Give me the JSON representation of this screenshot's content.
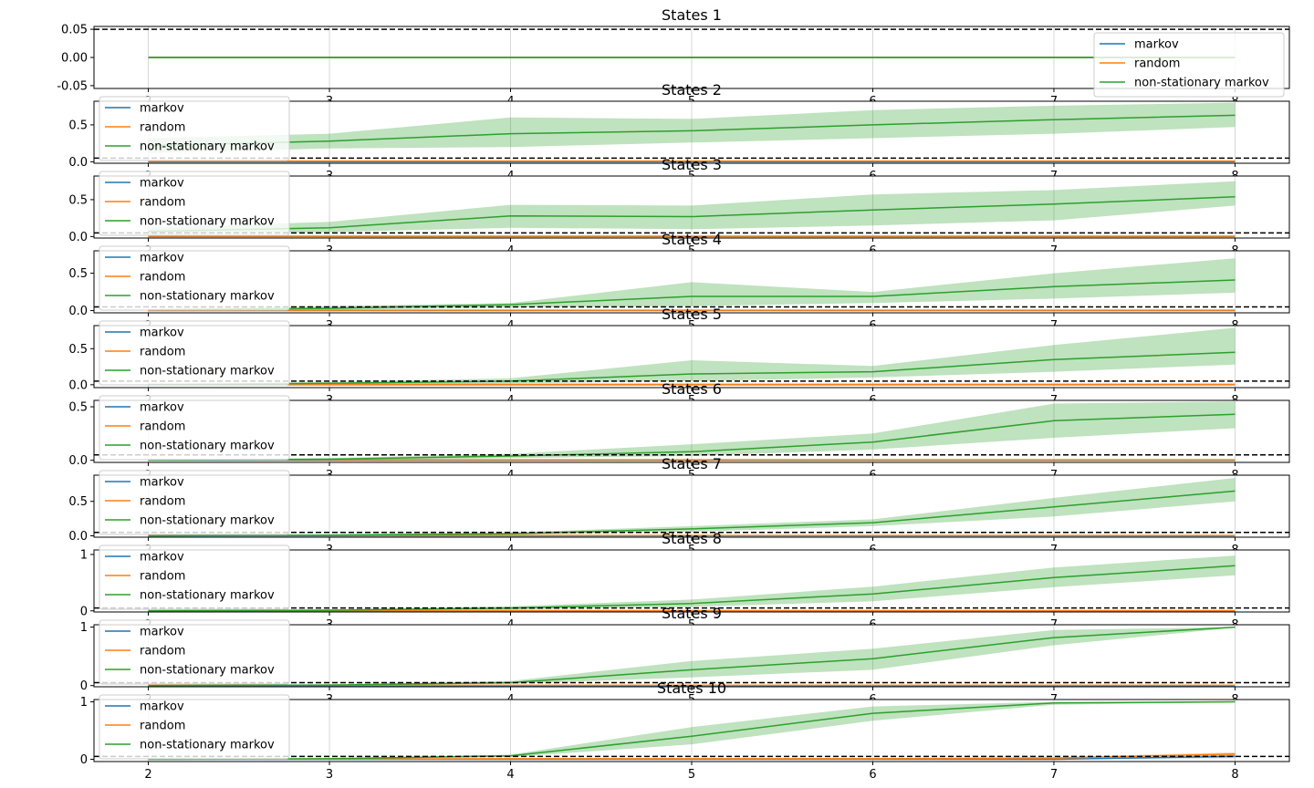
{
  "figure": {
    "x_ticks": [
      "2",
      "3",
      "4",
      "5",
      "6",
      "7",
      "8"
    ],
    "series_colors": {
      "markov": "#1f77b4",
      "random": "#ff7f0e",
      "non-stationary markov": "#2ca02c"
    },
    "reference_line_y": 0.05,
    "legend_labels": [
      "markov",
      "random",
      "non-stationary markov"
    ]
  },
  "chart_data": [
    {
      "type": "line",
      "title": "States 1",
      "x": [
        2,
        3,
        4,
        5,
        6,
        7,
        8
      ],
      "ylim": [
        -0.055,
        0.055
      ],
      "yticks": [
        "0.05",
        "0.00",
        "-0.05"
      ],
      "ytick_values": [
        0.05,
        0.0,
        -0.05
      ],
      "legend_position": "upper-right",
      "reference_line": 0.05,
      "series": [
        {
          "name": "markov",
          "values": [
            0,
            0,
            0,
            0,
            0,
            0,
            0
          ],
          "lower": [
            0,
            0,
            0,
            0,
            0,
            0,
            0
          ],
          "upper": [
            0,
            0,
            0,
            0,
            0,
            0,
            0
          ]
        },
        {
          "name": "random",
          "values": [
            0,
            0,
            0,
            0,
            0,
            0,
            0
          ],
          "lower": [
            0,
            0,
            0,
            0,
            0,
            0,
            0
          ],
          "upper": [
            0,
            0,
            0,
            0,
            0,
            0,
            0
          ]
        },
        {
          "name": "non-stationary markov",
          "values": [
            0,
            0,
            0,
            0,
            0,
            0,
            0
          ],
          "lower": [
            0,
            0,
            0,
            0,
            0,
            0,
            0
          ],
          "upper": [
            0,
            0,
            0,
            0,
            0,
            0,
            0
          ]
        }
      ]
    },
    {
      "type": "line",
      "title": "States 2",
      "x": [
        2,
        3,
        4,
        5,
        6,
        7,
        8
      ],
      "ylim": [
        -0.02,
        0.82
      ],
      "yticks": [
        "0.5",
        "0.0"
      ],
      "ytick_values": [
        0.5,
        0.0
      ],
      "legend_position": "upper-left",
      "reference_line": 0.05,
      "series": [
        {
          "name": "markov",
          "values": [
            0,
            0,
            0,
            0,
            0,
            0,
            0
          ],
          "lower": [
            0,
            0,
            0,
            0,
            0,
            0,
            0
          ],
          "upper": [
            0,
            0,
            0,
            0,
            0,
            0,
            0
          ]
        },
        {
          "name": "random",
          "values": [
            0.01,
            0.01,
            0.01,
            0.01,
            0.01,
            0.01,
            0.01
          ],
          "lower": [
            0.0,
            0.0,
            0.0,
            0.0,
            0.0,
            0.0,
            0.0
          ],
          "upper": [
            0.02,
            0.02,
            0.02,
            0.02,
            0.02,
            0.02,
            0.02
          ]
        },
        {
          "name": "non-stationary markov",
          "values": [
            0.22,
            0.28,
            0.38,
            0.42,
            0.5,
            0.57,
            0.63
          ],
          "lower": [
            0.12,
            0.18,
            0.2,
            0.26,
            0.32,
            0.38,
            0.47
          ],
          "upper": [
            0.32,
            0.38,
            0.6,
            0.58,
            0.7,
            0.76,
            0.8
          ]
        }
      ]
    },
    {
      "type": "line",
      "title": "States 3",
      "x": [
        2,
        3,
        4,
        5,
        6,
        7,
        8
      ],
      "ylim": [
        -0.02,
        0.82
      ],
      "yticks": [
        "0.5",
        "0.0"
      ],
      "ytick_values": [
        0.5,
        0.0
      ],
      "legend_position": "upper-left",
      "reference_line": 0.05,
      "series": [
        {
          "name": "markov",
          "values": [
            0,
            0,
            0,
            0,
            0,
            0,
            0
          ],
          "lower": [
            0,
            0,
            0,
            0,
            0,
            0,
            0
          ],
          "upper": [
            0,
            0,
            0,
            0,
            0,
            0,
            0
          ]
        },
        {
          "name": "random",
          "values": [
            0.005,
            0.005,
            0.005,
            0.005,
            0.005,
            0.005,
            0.005
          ],
          "lower": [
            0,
            0,
            0,
            0,
            0,
            0,
            0
          ],
          "upper": [
            0.01,
            0.01,
            0.01,
            0.01,
            0.01,
            0.01,
            0.01
          ]
        },
        {
          "name": "non-stationary markov",
          "values": [
            0.07,
            0.12,
            0.28,
            0.27,
            0.36,
            0.44,
            0.54
          ],
          "lower": [
            0.03,
            0.06,
            0.12,
            0.1,
            0.15,
            0.22,
            0.42
          ],
          "upper": [
            0.12,
            0.2,
            0.43,
            0.42,
            0.57,
            0.63,
            0.75
          ]
        }
      ]
    },
    {
      "type": "line",
      "title": "States 4",
      "x": [
        2,
        3,
        4,
        5,
        6,
        7,
        8
      ],
      "ylim": [
        -0.03,
        0.8
      ],
      "yticks": [
        "0.5",
        "0.0"
      ],
      "ytick_values": [
        0.5,
        0.0
      ],
      "legend_position": "upper-left",
      "reference_line": 0.05,
      "series": [
        {
          "name": "markov",
          "values": [
            0,
            0,
            0,
            0,
            0,
            0,
            0
          ],
          "lower": [
            0,
            0,
            0,
            0,
            0,
            0,
            0
          ],
          "upper": [
            0,
            0,
            0,
            0,
            0,
            0,
            0
          ]
        },
        {
          "name": "random",
          "values": [
            0.005,
            0.005,
            0.005,
            0.005,
            0.005,
            0.005,
            0.005
          ],
          "lower": [
            0,
            0,
            0,
            0,
            0,
            0,
            0
          ],
          "upper": [
            0.01,
            0.01,
            0.01,
            0.01,
            0.01,
            0.01,
            0.01
          ]
        },
        {
          "name": "non-stationary markov",
          "values": [
            0.01,
            0.03,
            0.08,
            0.19,
            0.19,
            0.32,
            0.41
          ],
          "lower": [
            0.0,
            0.01,
            0.04,
            0.06,
            0.1,
            0.16,
            0.24
          ],
          "upper": [
            0.02,
            0.06,
            0.1,
            0.38,
            0.25,
            0.5,
            0.7
          ]
        }
      ]
    },
    {
      "type": "line",
      "title": "States 5",
      "x": [
        2,
        3,
        4,
        5,
        6,
        7,
        8
      ],
      "ylim": [
        -0.04,
        0.82
      ],
      "yticks": [
        "0.5",
        "0.0"
      ],
      "ytick_values": [
        0.5,
        0.0
      ],
      "legend_position": "upper-left",
      "reference_line": 0.05,
      "series": [
        {
          "name": "markov",
          "values": [
            0,
            0,
            0,
            0,
            0,
            0,
            0
          ],
          "lower": [
            0,
            0,
            0,
            0,
            0,
            0,
            0
          ],
          "upper": [
            0,
            0,
            0,
            0,
            0,
            0,
            0
          ]
        },
        {
          "name": "random",
          "values": [
            0.005,
            0.005,
            0.005,
            0.005,
            0.005,
            0.005,
            0.005
          ],
          "lower": [
            0,
            0,
            0,
            0,
            0,
            0,
            0
          ],
          "upper": [
            0.01,
            0.01,
            0.01,
            0.01,
            0.01,
            0.01,
            0.01
          ]
        },
        {
          "name": "non-stationary markov",
          "values": [
            0.0,
            0.02,
            0.05,
            0.15,
            0.18,
            0.35,
            0.45
          ],
          "lower": [
            0.0,
            0.0,
            0.02,
            0.05,
            0.1,
            0.18,
            0.28
          ],
          "upper": [
            0.01,
            0.04,
            0.09,
            0.34,
            0.26,
            0.55,
            0.79
          ]
        }
      ]
    },
    {
      "type": "line",
      "title": "States 6",
      "x": [
        2,
        3,
        4,
        5,
        6,
        7,
        8
      ],
      "ylim": [
        -0.02,
        0.56
      ],
      "yticks": [
        "0.5",
        "0.0"
      ],
      "ytick_values": [
        0.5,
        0.0
      ],
      "legend_position": "upper-left",
      "reference_line": 0.05,
      "series": [
        {
          "name": "markov",
          "values": [
            0,
            0,
            0,
            0,
            0,
            0,
            0
          ],
          "lower": [
            0,
            0,
            0,
            0,
            0,
            0,
            0
          ],
          "upper": [
            0,
            0,
            0,
            0,
            0,
            0,
            0
          ]
        },
        {
          "name": "random",
          "values": [
            0.005,
            0.005,
            0.005,
            0.005,
            0.005,
            0.005,
            0.005
          ],
          "lower": [
            0,
            0,
            0,
            0,
            0,
            0,
            0
          ],
          "upper": [
            0.01,
            0.01,
            0.01,
            0.01,
            0.01,
            0.01,
            0.01
          ]
        },
        {
          "name": "non-stationary markov",
          "values": [
            0.0,
            0.01,
            0.04,
            0.08,
            0.17,
            0.37,
            0.43
          ],
          "lower": [
            0.0,
            0.0,
            0.02,
            0.04,
            0.1,
            0.21,
            0.3
          ],
          "upper": [
            0.01,
            0.02,
            0.06,
            0.15,
            0.25,
            0.53,
            0.55
          ]
        }
      ]
    },
    {
      "type": "line",
      "title": "States 7",
      "x": [
        2,
        3,
        4,
        5,
        6,
        7,
        8
      ],
      "ylim": [
        -0.02,
        0.88
      ],
      "yticks": [
        "0.5",
        "0.0"
      ],
      "ytick_values": [
        0.5,
        0.0
      ],
      "legend_position": "upper-left",
      "reference_line": 0.05,
      "series": [
        {
          "name": "markov",
          "values": [
            0,
            0,
            0,
            0,
            0,
            0,
            0
          ],
          "lower": [
            0,
            0,
            0,
            0,
            0,
            0,
            0
          ],
          "upper": [
            0,
            0,
            0,
            0,
            0,
            0,
            0
          ]
        },
        {
          "name": "random",
          "values": [
            0.005,
            0.005,
            0.005,
            0.005,
            0.005,
            0.005,
            0.005
          ],
          "lower": [
            0,
            0,
            0,
            0,
            0,
            0,
            0
          ],
          "upper": [
            0.01,
            0.01,
            0.01,
            0.01,
            0.01,
            0.01,
            0.01
          ]
        },
        {
          "name": "non-stationary markov",
          "values": [
            0.0,
            0.01,
            0.03,
            0.1,
            0.19,
            0.42,
            0.65
          ],
          "lower": [
            0.0,
            0.0,
            0.01,
            0.06,
            0.14,
            0.28,
            0.5
          ],
          "upper": [
            0.01,
            0.02,
            0.05,
            0.14,
            0.24,
            0.55,
            0.84
          ]
        }
      ]
    },
    {
      "type": "line",
      "title": "States 8",
      "x": [
        2,
        3,
        4,
        5,
        6,
        7,
        8
      ],
      "ylim": [
        -0.02,
        1.08
      ],
      "yticks": [
        "1",
        "0"
      ],
      "ytick_values": [
        1,
        0
      ],
      "legend_position": "upper-left",
      "reference_line": 0.05,
      "series": [
        {
          "name": "markov",
          "values": [
            0,
            0,
            0,
            0,
            0,
            0,
            0
          ],
          "lower": [
            0,
            0,
            0,
            0,
            0,
            0,
            0
          ],
          "upper": [
            0,
            0,
            0,
            0,
            0,
            0,
            0
          ]
        },
        {
          "name": "random",
          "values": [
            0.005,
            0.005,
            0.005,
            0.005,
            0.005,
            0.005,
            0.005
          ],
          "lower": [
            0,
            0,
            0,
            0,
            0,
            0,
            0
          ],
          "upper": [
            0.01,
            0.01,
            0.01,
            0.01,
            0.01,
            0.01,
            0.01
          ]
        },
        {
          "name": "non-stationary markov",
          "values": [
            0.0,
            0.01,
            0.05,
            0.13,
            0.3,
            0.59,
            0.8
          ],
          "lower": [
            0.0,
            0.0,
            0.02,
            0.07,
            0.17,
            0.42,
            0.63
          ],
          "upper": [
            0.01,
            0.03,
            0.08,
            0.2,
            0.43,
            0.77,
            0.98
          ]
        }
      ]
    },
    {
      "type": "line",
      "title": "States 9",
      "x": [
        2,
        3,
        4,
        5,
        6,
        7,
        8
      ],
      "ylim": [
        -0.02,
        1.04
      ],
      "yticks": [
        "1",
        "0"
      ],
      "ytick_values": [
        1,
        0
      ],
      "legend_position": "upper-left",
      "reference_line": 0.05,
      "series": [
        {
          "name": "markov",
          "values": [
            0,
            0,
            0,
            0,
            0,
            0,
            0
          ],
          "lower": [
            0,
            0,
            0,
            0,
            0,
            0,
            0
          ],
          "upper": [
            0,
            0,
            0,
            0,
            0,
            0,
            0
          ]
        },
        {
          "name": "random",
          "values": [
            0.005,
            0.005,
            0.005,
            0.005,
            0.005,
            0.005,
            0.005
          ],
          "lower": [
            0,
            0,
            0,
            0,
            0,
            0,
            0
          ],
          "upper": [
            0.01,
            0.01,
            0.01,
            0.01,
            0.01,
            0.01,
            0.01
          ]
        },
        {
          "name": "non-stationary markov",
          "values": [
            0.0,
            0.01,
            0.05,
            0.27,
            0.46,
            0.82,
            1.0
          ],
          "lower": [
            0.0,
            0.0,
            0.03,
            0.14,
            0.27,
            0.69,
            0.99
          ],
          "upper": [
            0.01,
            0.02,
            0.08,
            0.42,
            0.63,
            0.95,
            1.0
          ]
        }
      ]
    },
    {
      "type": "line",
      "title": "States 10",
      "x": [
        2,
        3,
        4,
        5,
        6,
        7,
        8
      ],
      "ylim": [
        -0.04,
        1.04
      ],
      "yticks": [
        "1",
        "0"
      ],
      "ytick_values": [
        1,
        0
      ],
      "legend_position": "upper-left",
      "reference_line": 0.05,
      "series": [
        {
          "name": "markov",
          "values": [
            0,
            0,
            0,
            0,
            0,
            0,
            0.05
          ],
          "lower": [
            0,
            0,
            0,
            0,
            0,
            0,
            0.02
          ],
          "upper": [
            0,
            0,
            0,
            0,
            0,
            0,
            0.08
          ]
        },
        {
          "name": "random",
          "values": [
            0.005,
            0.005,
            0.01,
            0.01,
            0.01,
            0.02,
            0.09
          ],
          "lower": [
            0,
            0,
            0,
            0,
            0,
            0.01,
            0.05
          ],
          "upper": [
            0.01,
            0.01,
            0.02,
            0.02,
            0.02,
            0.04,
            0.12
          ]
        },
        {
          "name": "non-stationary markov",
          "values": [
            0.0,
            0.01,
            0.06,
            0.4,
            0.8,
            0.98,
            1.0
          ],
          "lower": [
            0.0,
            0.0,
            0.04,
            0.26,
            0.67,
            0.95,
            0.99
          ],
          "upper": [
            0.01,
            0.02,
            0.08,
            0.56,
            0.92,
            1.0,
            1.0
          ]
        }
      ]
    }
  ]
}
